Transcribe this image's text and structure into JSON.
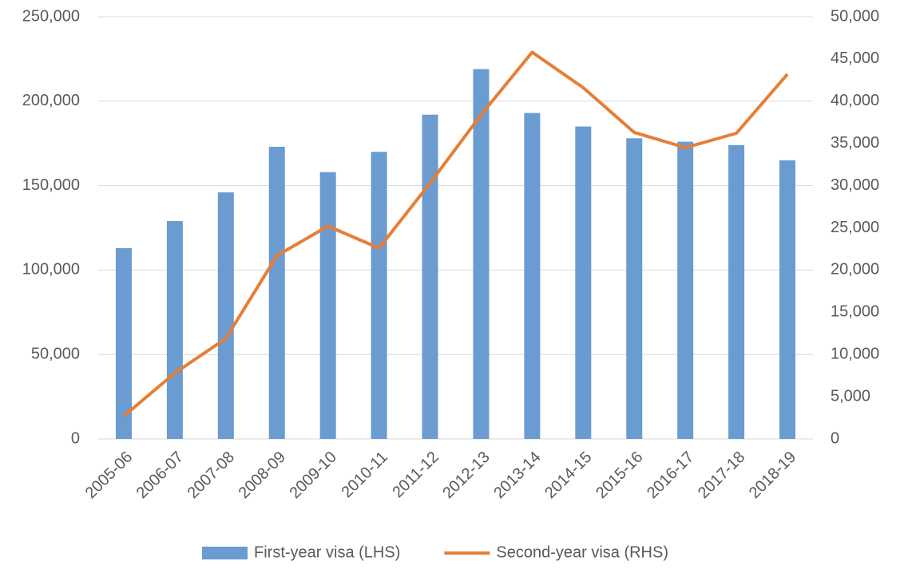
{
  "chart_data": {
    "type": "bar_line",
    "categories": [
      "2005-06",
      "2006-07",
      "2007-08",
      "2008-09",
      "2009-10",
      "2010-11",
      "2011-12",
      "2012-13",
      "2013-14",
      "2014-15",
      "2015-16",
      "2016-17",
      "2017-18",
      "2018-19"
    ],
    "series": [
      {
        "name": "First-year visa (LHS)",
        "type": "bar",
        "color": "#6a9bd1",
        "axis": "y",
        "values": [
          113000,
          129000,
          146000,
          173000,
          158000,
          170000,
          192000,
          219000,
          193000,
          185000,
          178000,
          176000,
          174000,
          165000
        ]
      },
      {
        "name": "Second-year visa (RHS)",
        "type": "line",
        "color": "#e57f36",
        "axis": "y2",
        "values": [
          2700,
          7800,
          11900,
          21700,
          25200,
          22600,
          30300,
          38400,
          45800,
          41600,
          36300,
          34500,
          36200,
          43200
        ]
      }
    ],
    "ylim": [
      0,
      250000
    ],
    "yticks": [
      0,
      {
        "value": 50000,
        "label": "50,000"
      },
      {
        "value": 100000,
        "label": "100,000"
      },
      {
        "value": 150000,
        "label": "150,000"
      },
      {
        "value": 200000,
        "label": "200,000"
      },
      {
        "value": 250000,
        "label": "250,000"
      }
    ],
    "y2lim": [
      0,
      50000
    ],
    "y2ticks": [
      0,
      {
        "value": 5000,
        "label": "5,000"
      },
      {
        "value": 10000,
        "label": "10,000"
      },
      {
        "value": 15000,
        "label": "15,000"
      },
      {
        "value": 20000,
        "label": "20,000"
      },
      {
        "value": 25000,
        "label": "25,000"
      },
      {
        "value": 30000,
        "label": "30,000"
      },
      {
        "value": 35000,
        "label": "35,000"
      },
      {
        "value": 40000,
        "label": "40,000"
      },
      {
        "value": 45000,
        "label": "45,000"
      },
      {
        "value": 50000,
        "label": "50,000"
      }
    ],
    "grid": true,
    "legend": "bottom"
  }
}
